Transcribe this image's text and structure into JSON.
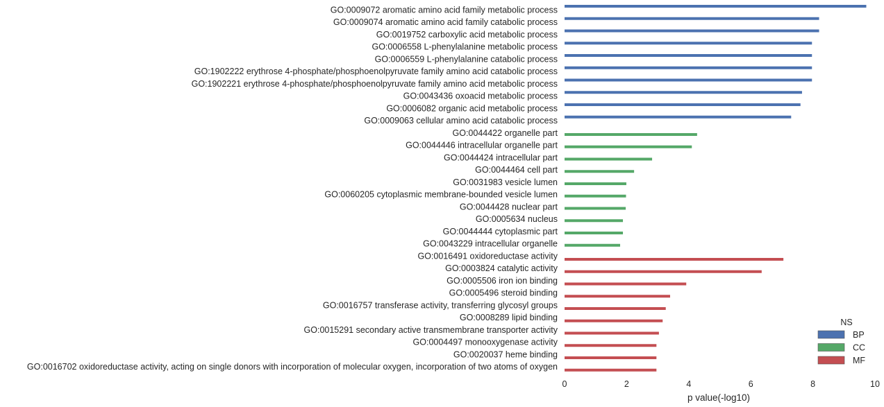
{
  "chart_data": {
    "type": "bar",
    "orientation": "horizontal",
    "xlabel": "p value(-log10)",
    "ylabel": "",
    "xlim": [
      0,
      10
    ],
    "xticks": [
      0,
      2,
      4,
      6,
      8,
      10
    ],
    "grid": false,
    "legend": {
      "title": "NS",
      "placement": "bottom-right",
      "entries": [
        {
          "name": "BP",
          "color": "#4C72B0"
        },
        {
          "name": "CC",
          "color": "#55A868"
        },
        {
          "name": "MF",
          "color": "#C44E52"
        }
      ]
    },
    "categories": [
      "GO:0009072 aromatic amino acid family metabolic process",
      "GO:0009074 aromatic amino acid family catabolic process",
      "GO:0019752 carboxylic acid metabolic process",
      "GO:0006558 L-phenylalanine metabolic process",
      "GO:0006559 L-phenylalanine catabolic process",
      "GO:1902222 erythrose 4-phosphate/phosphoenolpyruvate family amino acid catabolic process",
      "GO:1902221 erythrose 4-phosphate/phosphoenolpyruvate family amino acid metabolic process",
      "GO:0043436 oxoacid metabolic process",
      "GO:0006082 organic acid metabolic process",
      "GO:0009063 cellular amino acid catabolic process",
      "GO:0044422 organelle part",
      "GO:0044446 intracellular organelle part",
      "GO:0044424 intracellular part",
      "GO:0044464 cell part",
      "GO:0031983 vesicle lumen",
      "GO:0060205 cytoplasmic membrane-bounded vesicle lumen",
      "GO:0044428 nuclear part",
      "GO:0005634 nucleus",
      "GO:0044444 cytoplasmic part",
      "GO:0043229 intracellular organelle",
      "GO:0016491 oxidoreductase activity",
      "GO:0003824 catalytic activity",
      "GO:0005506 iron ion binding",
      "GO:0005496 steroid binding",
      "GO:0016757 transferase activity, transferring glycosyl groups",
      "GO:0008289 lipid binding",
      "GO:0015291 secondary active transmembrane transporter activity",
      "GO:0004497 monooxygenase activity",
      "GO:0020037 heme binding",
      "GO:0016702 oxidoreductase activity, acting on single donors with incorporation of molecular oxygen, incorporation of two atoms of oxygen"
    ],
    "values": [
      9.72,
      8.2,
      8.2,
      7.97,
      7.97,
      7.97,
      7.97,
      7.65,
      7.6,
      7.3,
      4.27,
      4.1,
      2.82,
      2.24,
      1.99,
      1.98,
      1.97,
      1.88,
      1.88,
      1.79,
      7.05,
      6.35,
      3.92,
      3.4,
      3.26,
      3.16,
      3.04,
      2.96,
      2.96,
      2.96
    ],
    "groups": [
      "BP",
      "BP",
      "BP",
      "BP",
      "BP",
      "BP",
      "BP",
      "BP",
      "BP",
      "BP",
      "CC",
      "CC",
      "CC",
      "CC",
      "CC",
      "CC",
      "CC",
      "CC",
      "CC",
      "CC",
      "MF",
      "MF",
      "MF",
      "MF",
      "MF",
      "MF",
      "MF",
      "MF",
      "MF",
      "MF"
    ]
  }
}
